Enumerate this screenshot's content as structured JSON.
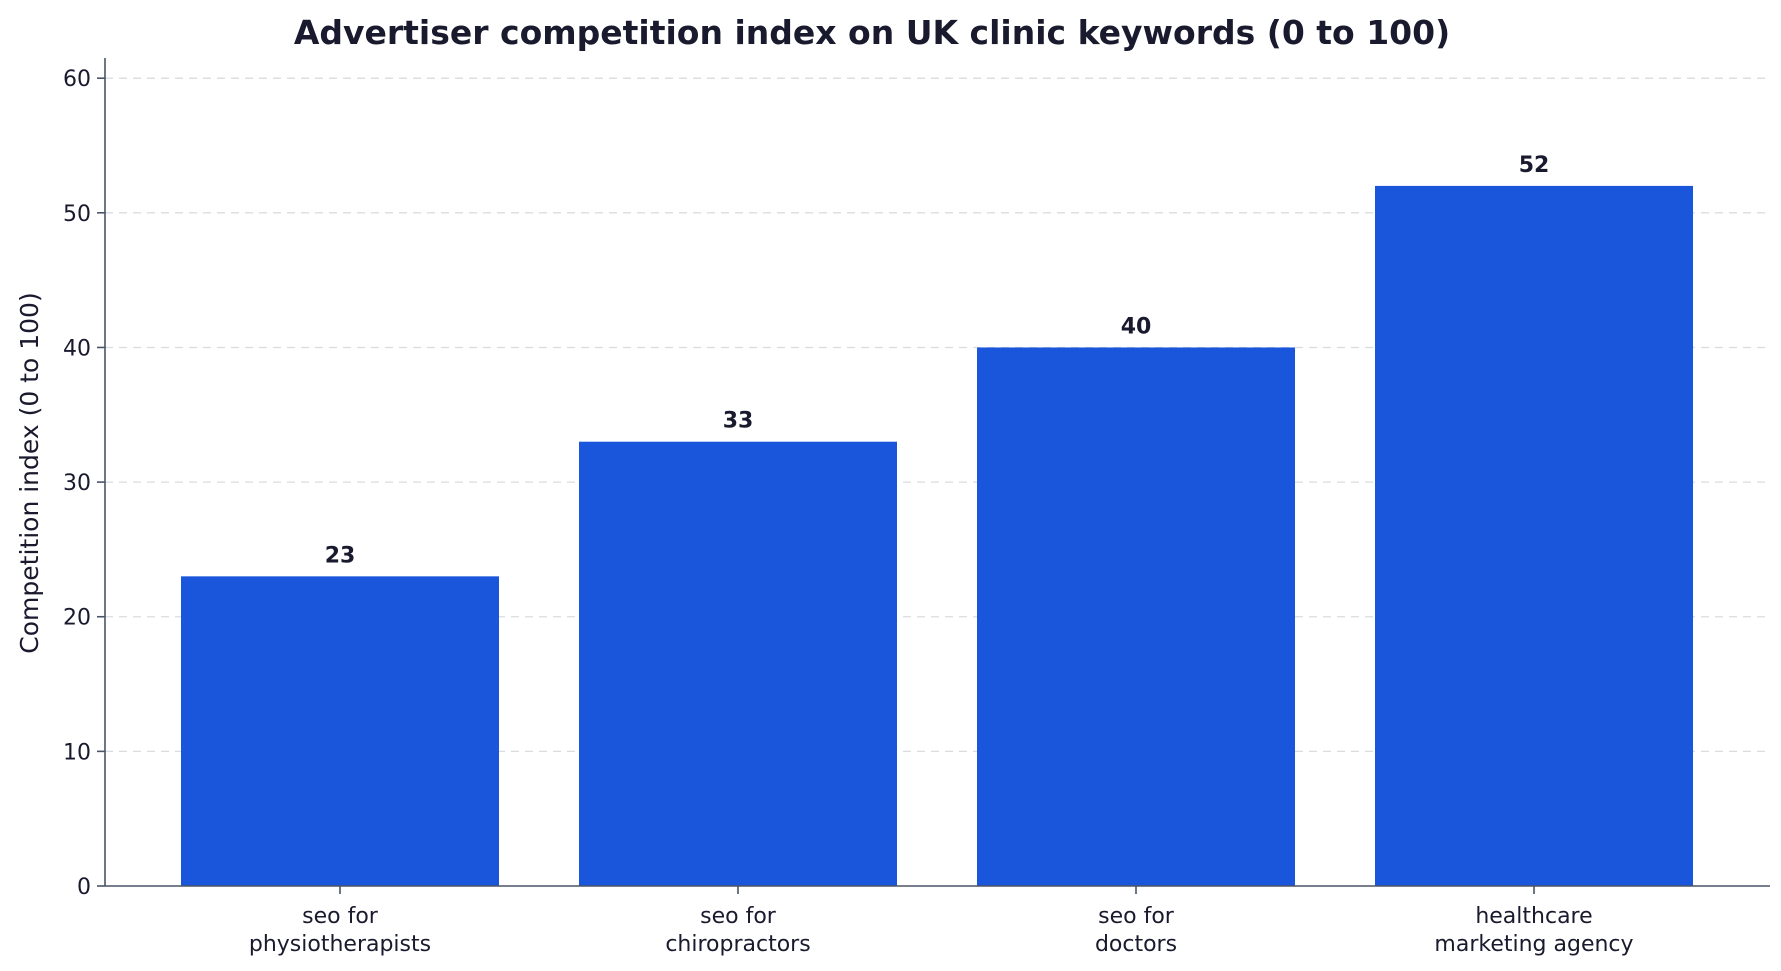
{
  "chart_data": {
    "type": "bar",
    "title": "Advertiser competition index on UK clinic keywords (0 to 100)",
    "xlabel": "",
    "ylabel": "Competition index (0 to 100)",
    "categories": [
      [
        "seo for",
        "physiotherapists"
      ],
      [
        "seo for",
        "chiropractors"
      ],
      [
        "seo for",
        "doctors"
      ],
      [
        "healthcare",
        "marketing agency"
      ]
    ],
    "values": [
      23,
      33,
      40,
      52
    ],
    "data_labels": [
      "23",
      "33",
      "40",
      "52"
    ],
    "ylim": [
      0,
      61.5
    ],
    "yticks": [
      0,
      10,
      20,
      30,
      40,
      50,
      60
    ],
    "grid": true,
    "legend": "none",
    "bar_color": "#1a56db"
  }
}
